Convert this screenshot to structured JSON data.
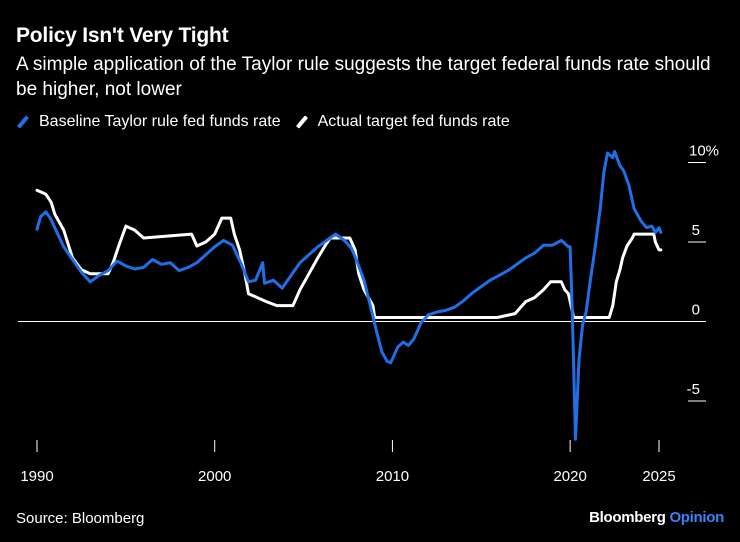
{
  "header": {
    "title": "Policy Isn't Very Tight",
    "subtitle": "A simple application of the Taylor rule suggests the target federal funds rate should be higher, not lower"
  },
  "footer": {
    "source": "Source: Bloomberg",
    "brand": "Bloomberg",
    "brand_suffix": "Opinion"
  },
  "colors": {
    "background": "#000000",
    "taylor": "#1f6fe8",
    "actual": "#ffffff",
    "brand_accent": "#3b82f6"
  },
  "chart_data": {
    "type": "line",
    "title": "Policy Isn't Very Tight",
    "xlabel": "",
    "ylabel": "",
    "xlim": [
      1990,
      2025.6
    ],
    "ylim": [
      -7.5,
      11
    ],
    "y_ticks": [
      {
        "value": 10,
        "label": "10%"
      },
      {
        "value": 5,
        "label": "5"
      },
      {
        "value": 0,
        "label": "0"
      },
      {
        "value": -5,
        "label": "-5"
      }
    ],
    "x_ticks": [
      {
        "value": 1990,
        "label": "1990"
      },
      {
        "value": 2000,
        "label": "2000"
      },
      {
        "value": 2010,
        "label": "2010"
      },
      {
        "value": 2020,
        "label": "2020"
      },
      {
        "value": 2025,
        "label": "2025"
      }
    ],
    "legend_position": "top-left",
    "series": [
      {
        "name": "Baseline Taylor rule fed funds rate",
        "color": "#1f6fe8",
        "points": [
          [
            1990.0,
            5.8
          ],
          [
            1990.2,
            6.6
          ],
          [
            1990.5,
            6.9
          ],
          [
            1990.8,
            6.4
          ],
          [
            1991.0,
            5.9
          ],
          [
            1991.5,
            4.7
          ],
          [
            1992.0,
            3.9
          ],
          [
            1992.5,
            3.1
          ],
          [
            1993.0,
            2.5
          ],
          [
            1993.5,
            2.9
          ],
          [
            1994.0,
            3.2
          ],
          [
            1994.5,
            3.8
          ],
          [
            1995.0,
            3.5
          ],
          [
            1995.5,
            3.3
          ],
          [
            1996.0,
            3.4
          ],
          [
            1996.5,
            3.9
          ],
          [
            1997.0,
            3.6
          ],
          [
            1997.5,
            3.7
          ],
          [
            1998.0,
            3.2
          ],
          [
            1998.5,
            3.4
          ],
          [
            1999.0,
            3.7
          ],
          [
            1999.5,
            4.2
          ],
          [
            2000.0,
            4.7
          ],
          [
            2000.5,
            5.1
          ],
          [
            2001.0,
            4.8
          ],
          [
            2001.5,
            3.6
          ],
          [
            2001.9,
            2.5
          ],
          [
            2002.3,
            2.6
          ],
          [
            2002.7,
            3.7
          ],
          [
            2002.8,
            2.4
          ],
          [
            2003.3,
            2.6
          ],
          [
            2003.8,
            2.1
          ],
          [
            2004.3,
            2.9
          ],
          [
            2004.8,
            3.7
          ],
          [
            2005.3,
            4.2
          ],
          [
            2005.8,
            4.7
          ],
          [
            2006.3,
            5.1
          ],
          [
            2006.8,
            5.5
          ],
          [
            2007.3,
            5.1
          ],
          [
            2007.7,
            4.6
          ],
          [
            2008.0,
            3.8
          ],
          [
            2008.4,
            2.6
          ],
          [
            2008.8,
            0.8
          ],
          [
            2009.1,
            -0.6
          ],
          [
            2009.4,
            -1.9
          ],
          [
            2009.7,
            -2.5
          ],
          [
            2009.9,
            -2.6
          ],
          [
            2010.3,
            -1.6
          ],
          [
            2010.6,
            -1.3
          ],
          [
            2010.9,
            -1.5
          ],
          [
            2011.2,
            -1.1
          ],
          [
            2011.6,
            -0.1
          ],
          [
            2012.0,
            0.4
          ],
          [
            2012.5,
            0.6
          ],
          [
            2013.0,
            0.7
          ],
          [
            2013.5,
            0.9
          ],
          [
            2014.0,
            1.3
          ],
          [
            2014.5,
            1.8
          ],
          [
            2015.0,
            2.2
          ],
          [
            2015.5,
            2.6
          ],
          [
            2016.0,
            2.9
          ],
          [
            2016.5,
            3.2
          ],
          [
            2017.0,
            3.6
          ],
          [
            2017.5,
            4.0
          ],
          [
            2018.0,
            4.3
          ],
          [
            2018.5,
            4.8
          ],
          [
            2019.0,
            4.8
          ],
          [
            2019.5,
            5.1
          ],
          [
            2019.9,
            4.7
          ],
          [
            2020.0,
            4.7
          ],
          [
            2020.12,
            0.6
          ],
          [
            2020.3,
            -7.4
          ],
          [
            2020.5,
            -2.4
          ],
          [
            2020.7,
            -0.2
          ],
          [
            2020.9,
            0.6
          ],
          [
            2021.1,
            2.3
          ],
          [
            2021.4,
            4.6
          ],
          [
            2021.7,
            7.2
          ],
          [
            2021.9,
            9.4
          ],
          [
            2022.1,
            10.6
          ],
          [
            2022.4,
            10.3
          ],
          [
            2022.5,
            10.7
          ],
          [
            2022.8,
            9.8
          ],
          [
            2023.0,
            9.5
          ],
          [
            2023.3,
            8.6
          ],
          [
            2023.6,
            7.1
          ],
          [
            2024.0,
            6.3
          ],
          [
            2024.3,
            5.9
          ],
          [
            2024.6,
            6.0
          ],
          [
            2024.8,
            5.6
          ],
          [
            2025.0,
            5.9
          ],
          [
            2025.1,
            5.6
          ]
        ]
      },
      {
        "name": "Actual target fed funds rate",
        "color": "#ffffff",
        "points": [
          [
            1990.0,
            8.25
          ],
          [
            1990.5,
            8.0
          ],
          [
            1990.8,
            7.5
          ],
          [
            1991.0,
            6.75
          ],
          [
            1991.5,
            5.75
          ],
          [
            1992.0,
            4.0
          ],
          [
            1992.5,
            3.25
          ],
          [
            1993.0,
            3.0
          ],
          [
            1994.0,
            3.0
          ],
          [
            1994.3,
            3.75
          ],
          [
            1994.6,
            4.75
          ],
          [
            1995.0,
            6.0
          ],
          [
            1995.5,
            5.75
          ],
          [
            1996.0,
            5.25
          ],
          [
            1998.7,
            5.5
          ],
          [
            1999.0,
            4.75
          ],
          [
            1999.5,
            5.0
          ],
          [
            2000.0,
            5.5
          ],
          [
            2000.4,
            6.5
          ],
          [
            2000.9,
            6.5
          ],
          [
            2001.1,
            5.5
          ],
          [
            2001.4,
            4.5
          ],
          [
            2001.7,
            3.0
          ],
          [
            2001.9,
            1.75
          ],
          [
            2002.9,
            1.25
          ],
          [
            2003.5,
            1.0
          ],
          [
            2004.4,
            1.0
          ],
          [
            2004.8,
            2.0
          ],
          [
            2005.3,
            3.0
          ],
          [
            2005.8,
            4.0
          ],
          [
            2006.2,
            4.75
          ],
          [
            2006.5,
            5.25
          ],
          [
            2007.6,
            5.25
          ],
          [
            2007.9,
            4.5
          ],
          [
            2008.1,
            3.0
          ],
          [
            2008.4,
            2.0
          ],
          [
            2008.9,
            1.0
          ],
          [
            2009.0,
            0.25
          ],
          [
            2015.9,
            0.25
          ],
          [
            2016.9,
            0.5
          ],
          [
            2017.5,
            1.25
          ],
          [
            2018.0,
            1.5
          ],
          [
            2018.5,
            2.0
          ],
          [
            2018.9,
            2.5
          ],
          [
            2019.5,
            2.5
          ],
          [
            2019.7,
            2.0
          ],
          [
            2019.9,
            1.75
          ],
          [
            2020.2,
            0.25
          ],
          [
            2022.2,
            0.25
          ],
          [
            2022.4,
            1.0
          ],
          [
            2022.6,
            2.5
          ],
          [
            2022.8,
            3.25
          ],
          [
            2022.95,
            4.0
          ],
          [
            2023.2,
            4.75
          ],
          [
            2023.5,
            5.25
          ],
          [
            2023.6,
            5.5
          ],
          [
            2024.7,
            5.5
          ],
          [
            2024.8,
            5.0
          ],
          [
            2024.9,
            4.75
          ],
          [
            2025.0,
            4.5
          ],
          [
            2025.1,
            4.5
          ]
        ]
      }
    ]
  }
}
